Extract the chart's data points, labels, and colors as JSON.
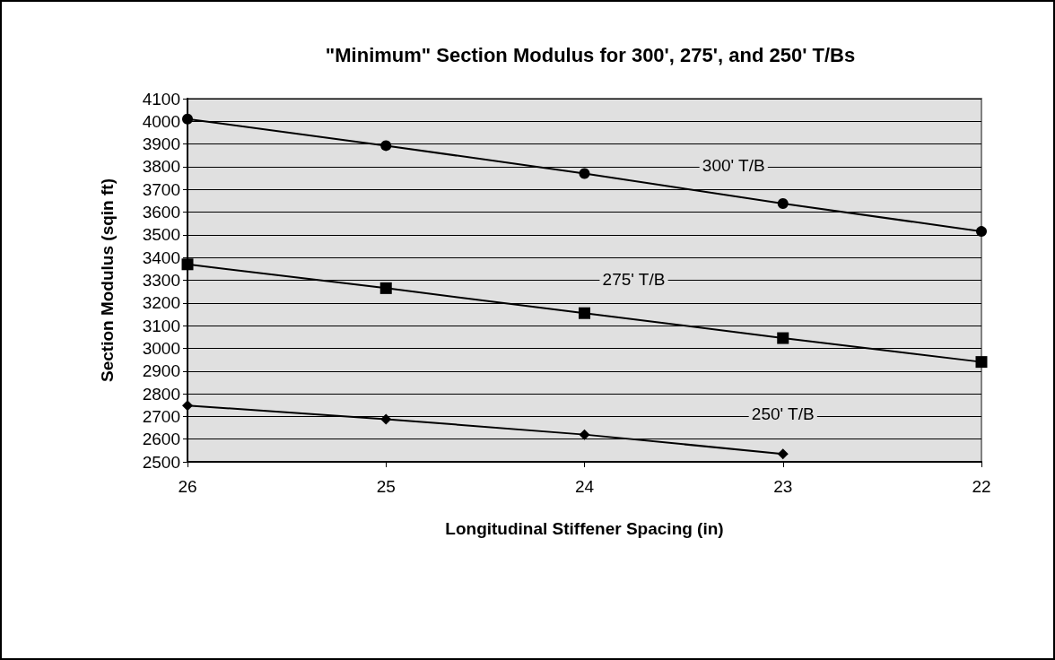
{
  "chart_data": {
    "type": "line",
    "title": "\"Minimum\" Section Modulus for 300', 275', and 250' T/Bs",
    "xlabel": "Longitudinal Stiffener Spacing (in)",
    "ylabel": "Section Modulus (sqin ft)",
    "x": [
      26,
      25,
      24,
      23,
      22
    ],
    "series": [
      {
        "name": "300' T/B",
        "color": "#000000",
        "marker": "circle",
        "values": [
          4010,
          3893,
          3770,
          3638,
          3515
        ]
      },
      {
        "name": "275' T/B",
        "color": "#000000",
        "marker": "square",
        "values": [
          3370,
          3265,
          3155,
          3045,
          2940
        ]
      },
      {
        "name": "250' T/B",
        "color": "#000000",
        "marker": "diamond",
        "values": [
          2748,
          2688,
          2620,
          2535,
          null
        ]
      }
    ],
    "xlim": [
      26,
      22
    ],
    "xticks": [
      26,
      25,
      24,
      23,
      22
    ],
    "ylim": [
      2500,
      4100
    ],
    "yticks": [
      2500,
      2600,
      2700,
      2800,
      2900,
      3000,
      3100,
      3200,
      3300,
      3400,
      3500,
      3600,
      3700,
      3800,
      3900,
      4000,
      4100
    ],
    "grid": "y"
  }
}
